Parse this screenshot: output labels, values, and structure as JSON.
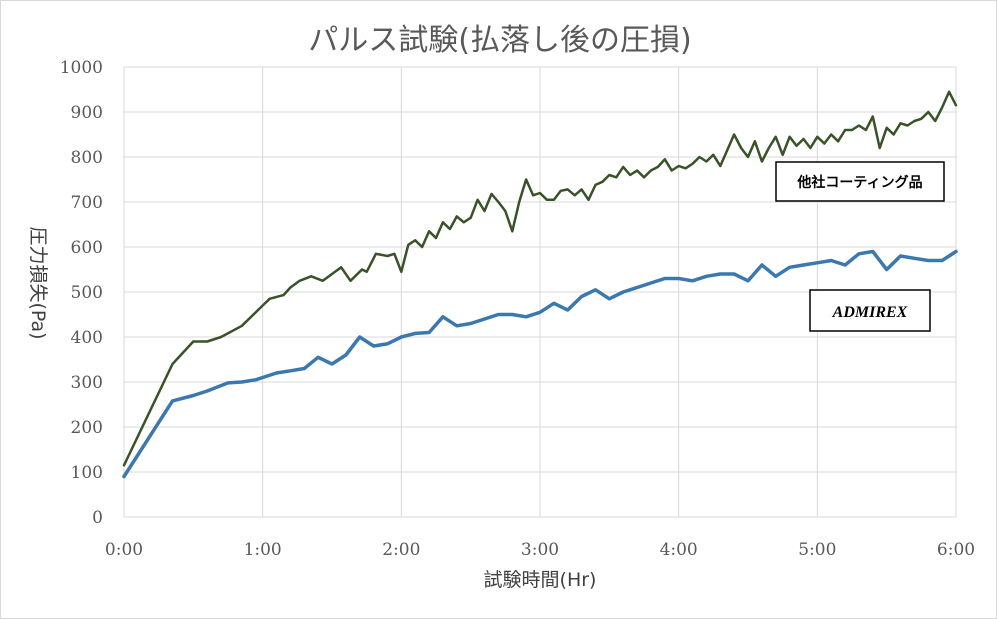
{
  "chart_data": {
    "type": "line",
    "title": "パルス試験(払落し後の圧損)",
    "xlabel": "試験時間(Hr)",
    "ylabel": "圧力損失(Pa)",
    "xlim": [
      0,
      360
    ],
    "ylim": [
      0,
      1000
    ],
    "x_ticks": [
      "0:00",
      "1:00",
      "2:00",
      "3:00",
      "4:00",
      "5:00",
      "6:00"
    ],
    "y_ticks": [
      "0",
      "100",
      "200",
      "300",
      "400",
      "500",
      "600",
      "700",
      "800",
      "900",
      "1000"
    ],
    "grid": true,
    "x_unit_note": "x values in minutes of test time",
    "series": [
      {
        "name": "他社コーティング品",
        "color": "#3a5228",
        "x": [
          0,
          21,
          30,
          36,
          42,
          51,
          60,
          63,
          69,
          72,
          76,
          81,
          86,
          90,
          94,
          98,
          103,
          105,
          109,
          114,
          117,
          120,
          123,
          126,
          129,
          132,
          135,
          138,
          141,
          144,
          147,
          150,
          153,
          156,
          159,
          162,
          165,
          168,
          171,
          174,
          177,
          180,
          183,
          186,
          189,
          192,
          195,
          198,
          201,
          204,
          207,
          210,
          213,
          216,
          219,
          222,
          225,
          228,
          231,
          234,
          237,
          240,
          243,
          246,
          249,
          252,
          255,
          258,
          261,
          264,
          267,
          270,
          273,
          276,
          279,
          282,
          285,
          288,
          291,
          294,
          297,
          300,
          303,
          306,
          309,
          312,
          315,
          318,
          321,
          324,
          327,
          330,
          333,
          336,
          339,
          342,
          345,
          348,
          351,
          354,
          357,
          360
        ],
        "y": [
          115,
          340,
          390,
          390,
          400,
          425,
          470,
          485,
          493,
          510,
          525,
          535,
          525,
          540,
          555,
          525,
          550,
          545,
          585,
          580,
          585,
          545,
          605,
          615,
          600,
          635,
          620,
          655,
          640,
          668,
          655,
          665,
          705,
          680,
          718,
          700,
          680,
          635,
          700,
          750,
          715,
          720,
          705,
          705,
          725,
          728,
          715,
          728,
          705,
          738,
          745,
          760,
          755,
          778,
          760,
          770,
          755,
          770,
          778,
          795,
          770,
          780,
          775,
          785,
          800,
          790,
          805,
          780,
          815,
          850,
          820,
          800,
          835,
          790,
          820,
          845,
          805,
          845,
          825,
          840,
          820,
          845,
          830,
          850,
          835,
          860,
          860,
          870,
          860,
          890,
          820,
          865,
          850,
          875,
          870,
          880,
          885,
          900,
          880,
          910,
          945,
          915
        ]
      },
      {
        "name": "ADMIREX",
        "color": "#3b78b0",
        "x": [
          0,
          21,
          30,
          36,
          45,
          51,
          57,
          60,
          66,
          72,
          78,
          84,
          90,
          96,
          102,
          108,
          114,
          120,
          126,
          132,
          138,
          144,
          150,
          156,
          162,
          168,
          174,
          180,
          186,
          192,
          198,
          204,
          210,
          216,
          222,
          228,
          234,
          240,
          246,
          252,
          258,
          264,
          270,
          276,
          282,
          288,
          294,
          300,
          306,
          312,
          318,
          324,
          330,
          336,
          342,
          348,
          354,
          360
        ],
        "y": [
          90,
          258,
          270,
          280,
          298,
          300,
          305,
          310,
          320,
          325,
          330,
          355,
          340,
          360,
          400,
          380,
          385,
          400,
          408,
          410,
          445,
          425,
          430,
          440,
          450,
          450,
          445,
          455,
          475,
          460,
          490,
          505,
          485,
          500,
          510,
          520,
          530,
          530,
          525,
          535,
          540,
          540,
          525,
          560,
          535,
          555,
          560,
          565,
          570,
          560,
          585,
          590,
          550,
          580,
          575,
          570,
          570,
          590
        ]
      }
    ]
  }
}
